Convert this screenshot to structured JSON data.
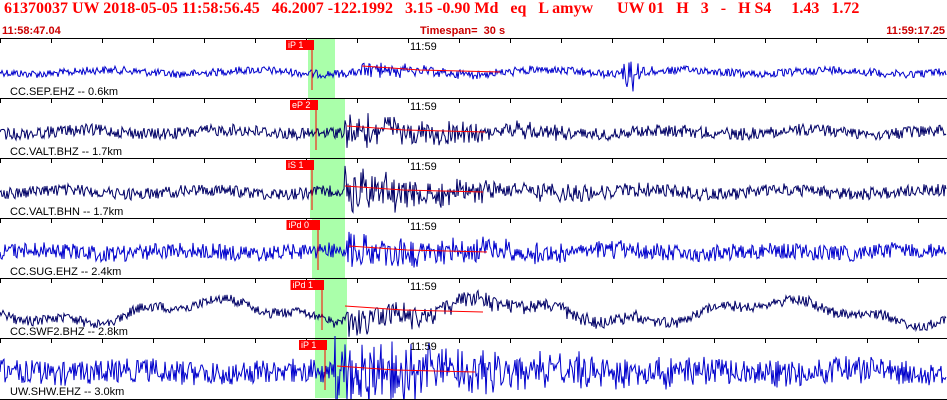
{
  "header": {
    "title": "61370037 UW 2018-05-05 11:58:56.45   46.2007 -122.1992   3.15 -0.90 Md   eq   L amyw      UW 01   H   3   -   H S4     1.43   1.72",
    "start_time": "11:58:47.04",
    "timespan": "Timespan=  30 s",
    "end_time": "11:59:17.25"
  },
  "colors": {
    "trace": "#0000cc",
    "trace_dark": "#000066",
    "pick": "#ff0000",
    "highlight": "#aaffaa",
    "tick": "#000000"
  },
  "tracks": [
    {
      "station": "CC.SEP.EHZ -- 0.6km",
      "pick_label": "iP 1",
      "time_label": "11:59"
    },
    {
      "station": "CC.VALT.BHZ -- 1.7km",
      "pick_label": "eP 2",
      "time_label": "11:59"
    },
    {
      "station": "CC.VALT.BHN -- 1.7km",
      "pick_label": "iS 1",
      "time_label": "11:59"
    },
    {
      "station": "CC.SUG.EHZ -- 2.4km",
      "pick_label": "iPd 0",
      "time_label": "11:59"
    },
    {
      "station": "CC.SWF2.BHZ -- 2.8km",
      "pick_label": "iPd 1",
      "time_label": "11:59"
    },
    {
      "station": "UW.SHW.EHZ -- 3.0km",
      "pick_label": "iP 1",
      "time_label": "11:59"
    }
  ]
}
